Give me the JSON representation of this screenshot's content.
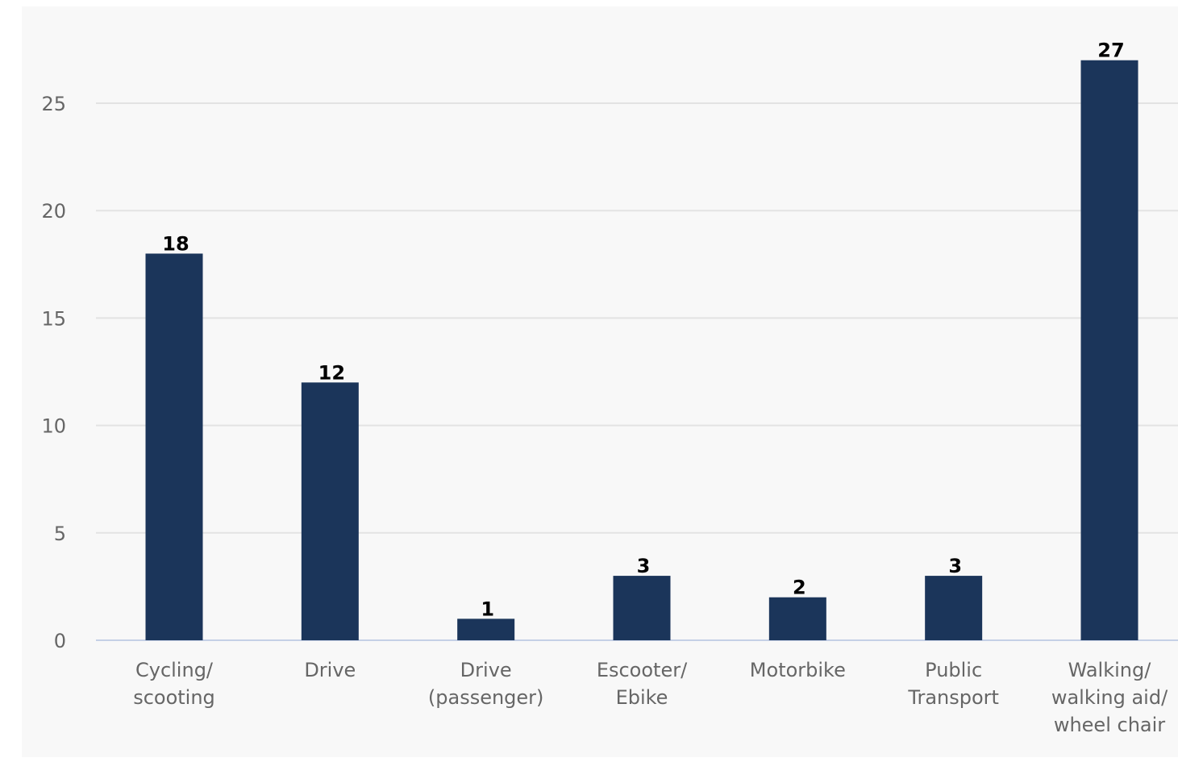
{
  "colors": {
    "bar": "#1b355a",
    "background": "#f8f8f8",
    "grid": "#e3e3e3",
    "baseline": "#c5d0e6",
    "tick_text": "#666666",
    "label_text": "#000000"
  },
  "chart_data": {
    "type": "bar",
    "title": "",
    "xlabel": "",
    "ylabel": "",
    "categories": [
      [
        "Cycling/",
        "scooting"
      ],
      [
        "Drive"
      ],
      [
        "Drive",
        "(passenger)"
      ],
      [
        "Escooter/",
        "Ebike"
      ],
      [
        "Motorbike"
      ],
      [
        "Public",
        "Transport"
      ],
      [
        "Walking/",
        "walking aid/",
        "wheel chair"
      ]
    ],
    "values": [
      18,
      12,
      1,
      3,
      2,
      3,
      27
    ],
    "ylim": [
      0,
      27.5
    ],
    "yticks": [
      0,
      5,
      10,
      15,
      20,
      25
    ],
    "grid": true,
    "legend": "none"
  }
}
